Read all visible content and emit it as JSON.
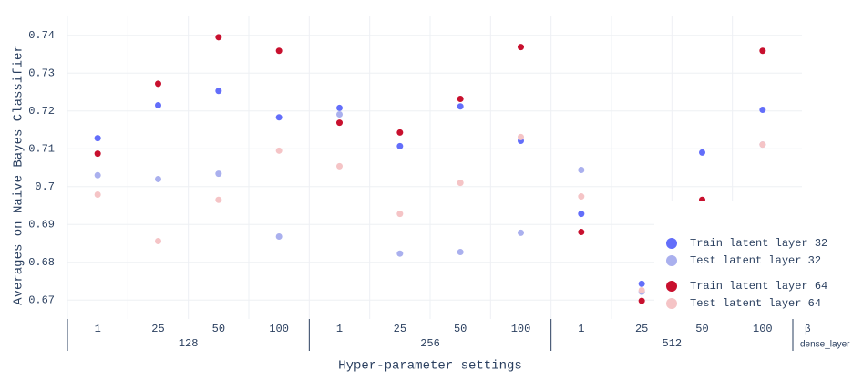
{
  "chart_data": {
    "type": "scatter",
    "x_title": "Hyper-parameter settings",
    "y_title": "Averages on Naive Bayes Classifier",
    "x_level_titles": [
      "β",
      "dense_layer"
    ],
    "categories": [
      "1",
      "25",
      "50",
      "100",
      "1",
      "25",
      "50",
      "100",
      "1",
      "25",
      "50",
      "100"
    ],
    "groups": [
      "128",
      "256",
      "512"
    ],
    "series": [
      {
        "name": "Train latent layer 32",
        "color": "#636efa",
        "values": [
          0.7128,
          0.7215,
          0.7253,
          0.7183,
          0.7208,
          0.7107,
          0.7212,
          0.7121,
          0.6928,
          0.6743,
          0.709,
          0.7203
        ]
      },
      {
        "name": "Test latent layer 32",
        "color": "#aab0ee",
        "values": [
          0.703,
          0.702,
          0.7034,
          0.6868,
          0.7191,
          0.6823,
          0.6827,
          0.6878,
          0.7044,
          0.6722,
          null,
          0.7111
        ]
      },
      {
        "name": "Train latent layer 64",
        "color": "#c8102e",
        "values": [
          0.7087,
          0.7272,
          0.7395,
          0.7359,
          0.7169,
          0.7143,
          0.7232,
          0.7369,
          0.688,
          0.6698,
          0.6965,
          0.7359
        ]
      },
      {
        "name": "Test latent layer 64",
        "color": "#f5c4c6",
        "values": [
          0.6979,
          0.6856,
          0.6965,
          0.7095,
          0.7054,
          0.6928,
          0.701,
          0.7131,
          0.6974,
          0.6726,
          null,
          0.7111
        ]
      }
    ],
    "ylim": [
      0.665,
      0.745
    ],
    "yticks": [
      0.67,
      0.68,
      0.69,
      0.7,
      0.71,
      0.72,
      0.73,
      0.74
    ],
    "grid": true,
    "legend": "bottom-right"
  }
}
